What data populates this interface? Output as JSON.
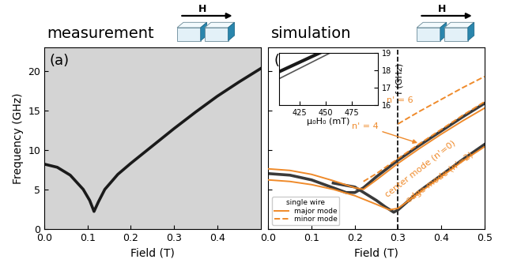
{
  "chart_data": [
    {
      "type": "line",
      "title": "measurement",
      "panel_label": "(a)",
      "icon_label": "H",
      "x_label": "Field (T)",
      "y_label": "Frequency (GHz)",
      "xlim": [
        0,
        0.5
      ],
      "xticks": [
        0.0,
        0.1,
        0.2,
        0.3,
        0.4
      ],
      "ylim": [
        0,
        23
      ],
      "yticks": [
        0,
        5,
        10,
        15,
        20
      ],
      "series": [
        {
          "color": "#1a1a1a",
          "line_style": "solid",
          "x": [
            0,
            0.03,
            0.06,
            0.09,
            0.105,
            0.115,
            0.125,
            0.14,
            0.17,
            0.2,
            0.25,
            0.3,
            0.35,
            0.4,
            0.45,
            0.5
          ],
          "values": [
            8.2,
            7.8,
            6.8,
            5.0,
            3.6,
            2.2,
            3.4,
            5.0,
            6.9,
            8.3,
            10.5,
            12.7,
            14.8,
            16.8,
            18.6,
            20.3
          ]
        }
      ]
    },
    {
      "type": "line",
      "title": "simulation",
      "panel_label": "(b)",
      "icon_label": "H",
      "x_label": "Field (T)",
      "tick_labels": "x",
      "xlim": [
        0,
        0.5
      ],
      "xticks": [
        0.0,
        0.1,
        0.2,
        0.3,
        0.4,
        0.5
      ],
      "ylim": [
        0,
        23
      ],
      "yticks": [
        0,
        5,
        10,
        15,
        20
      ],
      "vline": 0.3,
      "legend": "lower left",
      "legend_title": "single wire",
      "legend_entries": [
        {
          "name": "major mode",
          "color": "#ef8a2a",
          "line_style": "solid"
        },
        {
          "name": "minor mode",
          "color": "#ef8a2a",
          "line_style": "dashed"
        }
      ],
      "series": [
        {
          "color": "#3a3a3a",
          "line_style": "solid",
          "x": [
            0,
            0.05,
            0.1,
            0.15,
            0.18,
            0.2,
            0.22,
            0.25,
            0.3,
            0.35,
            0.4,
            0.45,
            0.5
          ],
          "values": [
            7.0,
            6.8,
            6.2,
            5.2,
            4.6,
            4.6,
            5.2,
            6.6,
            8.7,
            10.6,
            12.4,
            14.2,
            15.9
          ]
        },
        {
          "color": "#3a3a3a",
          "line_style": "solid",
          "x": [
            0.15,
            0.2,
            0.25,
            0.27,
            0.29,
            0.3,
            0.35,
            0.4,
            0.45,
            0.5
          ],
          "values": [
            5.8,
            5.3,
            3.6,
            2.8,
            2.1,
            2.4,
            4.8,
            6.8,
            8.8,
            10.7
          ]
        },
        {
          "color": "#ef8a2a",
          "line_style": "solid",
          "label": "center mode (n'=0)",
          "x": [
            0,
            0.05,
            0.1,
            0.15,
            0.2,
            0.22,
            0.25,
            0.3,
            0.35,
            0.4,
            0.45,
            0.5
          ],
          "values": [
            7.6,
            7.4,
            6.9,
            6.1,
            5.2,
            5.0,
            6.2,
            8.3,
            10.2,
            12.0,
            13.7,
            15.3
          ]
        },
        {
          "color": "#ef8a2a",
          "line_style": "solid",
          "label": "edge mode (n'=2)",
          "x": [
            0,
            0.05,
            0.1,
            0.15,
            0.2,
            0.25,
            0.28,
            0.3,
            0.35,
            0.4,
            0.45,
            0.5
          ],
          "values": [
            6.2,
            6.0,
            5.6,
            5.0,
            4.2,
            3.1,
            2.4,
            2.6,
            4.6,
            6.6,
            8.6,
            10.4
          ]
        },
        {
          "color": "#ef8a2a",
          "line_style": "dashed",
          "label": "n' = 4",
          "x": [
            0.22,
            0.25,
            0.3,
            0.35,
            0.4,
            0.45,
            0.5
          ],
          "values": [
            6.0,
            7.0,
            8.9,
            10.8,
            12.6,
            14.4,
            16.1
          ]
        },
        {
          "color": "#ef8a2a",
          "line_style": "dashed",
          "label": "n' = 6",
          "x": [
            0.3,
            0.35,
            0.4,
            0.45,
            0.5
          ],
          "values": [
            13.3,
            14.9,
            16.4,
            17.9,
            19.3
          ]
        }
      ],
      "inset": {
        "type": "line",
        "x_label": "μ₀H₀ (mT)",
        "y_label": "f (GHz)",
        "xlim": [
          405,
          500
        ],
        "xticks": [
          425,
          450,
          475
        ],
        "ylim": [
          16,
          19
        ],
        "yticks": [
          16,
          17,
          18,
          19
        ],
        "series": [
          {
            "color": "#1a1a1a",
            "line_style": "solid",
            "x": [
              405,
              445
            ],
            "values": [
              17.9,
              19.0
            ]
          },
          {
            "color": "#555555",
            "line_style": "solid",
            "x": [
              405,
              455
            ],
            "values": [
              17.5,
              19.0
            ]
          }
        ]
      }
    }
  ]
}
